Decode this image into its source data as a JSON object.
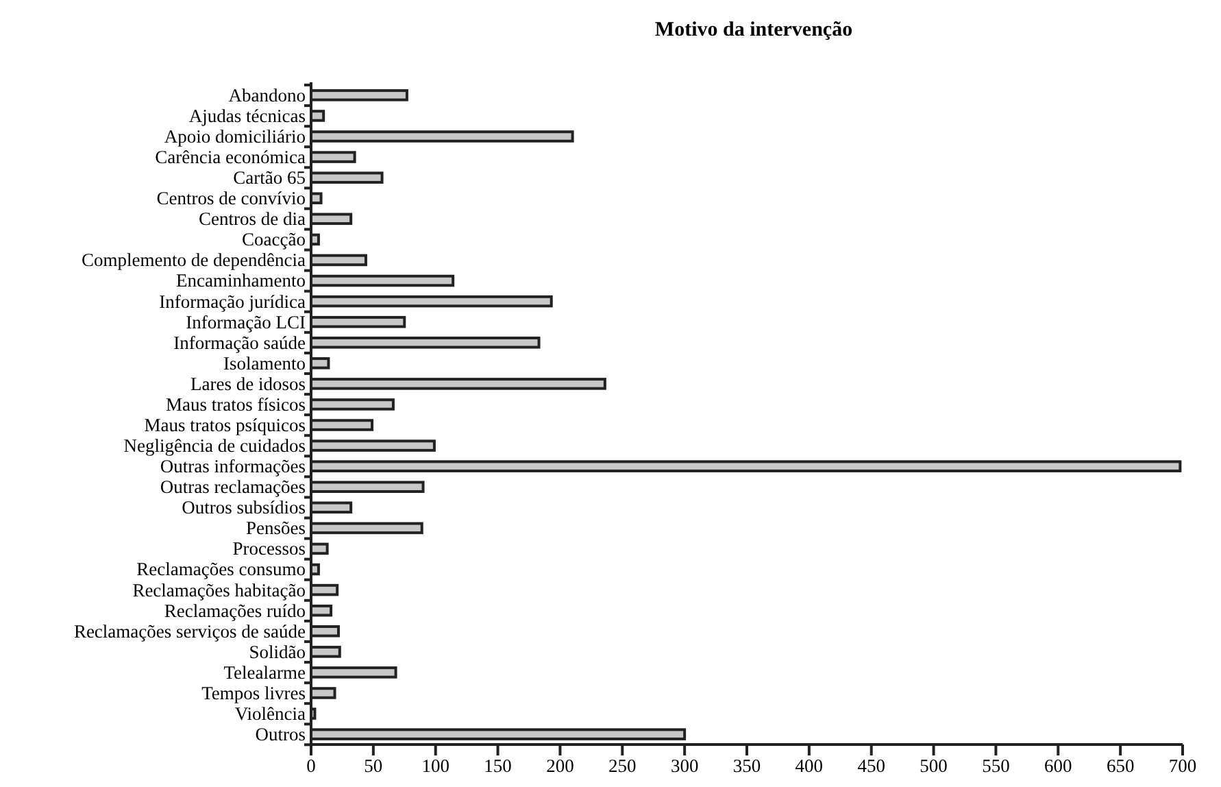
{
  "chart_data": {
    "type": "bar",
    "orientation": "horizontal",
    "title": "Motivo da intervenção",
    "categories": [
      "Abandono",
      "Ajudas técnicas",
      "Apoio domiciliário",
      "Carência económica",
      "Cartão 65",
      "Centros de convívio",
      "Centros de dia",
      "Coacção",
      "Complemento de dependência",
      "Encaminhamento",
      "Informação jurídica",
      "Informação LCI",
      "Informação saúde",
      "Isolamento",
      "Lares de idosos",
      "Maus tratos físicos",
      "Maus tratos psíquicos",
      "Negligência de cuidados",
      "Outras informações",
      "Outras reclamações",
      "Outros subsídios",
      "Pensões",
      "Processos",
      "Reclamações consumo",
      "Reclamações habitação",
      "Reclamações ruído",
      "Reclamações serviços de saúde",
      "Solidão",
      "Telealarme",
      "Tempos livres",
      "Violência",
      "Outros"
    ],
    "values": [
      77,
      10,
      210,
      35,
      57,
      8,
      32,
      6,
      44,
      114,
      193,
      75,
      183,
      14,
      236,
      66,
      49,
      99,
      698,
      90,
      32,
      89,
      13,
      6,
      21,
      16,
      22,
      23,
      68,
      19,
      3,
      300
    ],
    "color": "#c8c8c8",
    "xlim": [
      0,
      700
    ],
    "xticks": [
      0,
      50,
      100,
      150,
      200,
      250,
      300,
      350,
      400,
      450,
      500,
      550,
      600,
      650,
      700
    ],
    "grid": false
  }
}
